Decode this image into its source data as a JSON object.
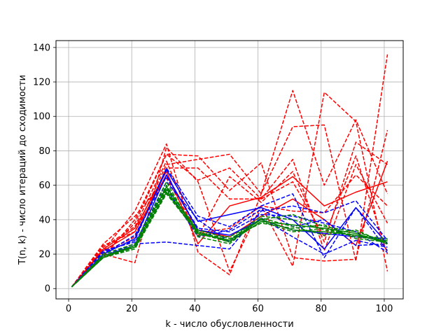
{
  "chart_data": {
    "type": "line",
    "xlabel": "k - число обусловленности",
    "ylabel": "T(n, k) - число итераций до сходимости",
    "xlim": [
      -4,
      106
    ],
    "ylim": [
      -6,
      144
    ],
    "xticks": [
      0,
      20,
      40,
      60,
      80,
      100
    ],
    "yticks": [
      0,
      20,
      40,
      60,
      80,
      100,
      120,
      140
    ],
    "grid": true,
    "x": [
      1,
      11,
      21,
      31,
      41,
      51,
      61,
      71,
      81,
      91,
      101
    ],
    "series": [
      {
        "color": "#ff0000",
        "dash": "dashed",
        "values": [
          1,
          25,
          33,
          72,
          75,
          78,
          55,
          115,
          60,
          98,
          55
        ]
      },
      {
        "color": "#ff0000",
        "dash": "dashed",
        "values": [
          1,
          22,
          45,
          84,
          21,
          8,
          55,
          94,
          95,
          16,
          136
        ]
      },
      {
        "color": "#ff0000",
        "dash": "dashed",
        "values": [
          1,
          20,
          15,
          82,
          62,
          10,
          48,
          13,
          114,
          97,
          10
        ]
      },
      {
        "color": "#ff0000",
        "dash": "dashed",
        "values": [
          1,
          20,
          38,
          78,
          77,
          57,
          73,
          18,
          16,
          17,
          92
        ]
      },
      {
        "color": "#ff0000",
        "dash": "dashed",
        "values": [
          1,
          18,
          40,
          78,
          63,
          70,
          52,
          75,
          22,
          72,
          38
        ]
      },
      {
        "color": "#ff0000",
        "dash": "dashed",
        "values": [
          1,
          24,
          36,
          74,
          30,
          65,
          50,
          68,
          27,
          85,
          72
        ]
      },
      {
        "color": "#ff0000",
        "dash": "dashed",
        "values": [
          1,
          26,
          42,
          64,
          32,
          35,
          48,
          45,
          44,
          66,
          48
        ]
      },
      {
        "color": "#ff0000",
        "dash": "dashed",
        "values": [
          1,
          21,
          30,
          70,
          70,
          52,
          52,
          62,
          30,
          77,
          20
        ]
      },
      {
        "color": "#ff0000",
        "dash": "solid",
        "values": [
          1,
          23,
          35,
          68,
          26,
          48,
          53,
          65,
          48,
          56,
          62
        ]
      },
      {
        "color": "#ff0000",
        "dash": "solid",
        "values": [
          1,
          22,
          33,
          66,
          34,
          30,
          42,
          52,
          40,
          25,
          74
        ]
      },
      {
        "color": "#0000ff",
        "dash": "dashed",
        "values": [
          1,
          21,
          28,
          70,
          42,
          36,
          48,
          55,
          18,
          47,
          22
        ]
      },
      {
        "color": "#0000ff",
        "dash": "dashed",
        "values": [
          1,
          19,
          26,
          27,
          25,
          23,
          45,
          48,
          44,
          51,
          28
        ]
      },
      {
        "color": "#0000ff",
        "dash": "dashed",
        "values": [
          1,
          20,
          31,
          65,
          35,
          33,
          43,
          42,
          38,
          33,
          21
        ]
      },
      {
        "color": "#0000ff",
        "dash": "dashed",
        "values": [
          1,
          18,
          24,
          62,
          40,
          27,
          41,
          30,
          20,
          28,
          24
        ]
      },
      {
        "color": "#0000ff",
        "dash": "dashed",
        "values": [
          1,
          22,
          27,
          58,
          30,
          34,
          46,
          36,
          40,
          25,
          26
        ]
      },
      {
        "color": "#0000ff",
        "dash": "solid",
        "values": [
          1,
          20,
          29,
          69,
          39,
          43,
          47,
          40,
          23,
          47,
          26
        ]
      },
      {
        "color": "#0000ff",
        "dash": "solid",
        "values": [
          1,
          19,
          25,
          66,
          34,
          31,
          40,
          34,
          32,
          30,
          29
        ]
      },
      {
        "color": "#008000",
        "dash": "dashed",
        "values": [
          1,
          18,
          24,
          57,
          33,
          28,
          42,
          40,
          34,
          31,
          29
        ]
      },
      {
        "color": "#008000",
        "dash": "dashed",
        "values": [
          1,
          19,
          25,
          60,
          31,
          30,
          40,
          43,
          36,
          33,
          27
        ]
      },
      {
        "color": "#008000",
        "dash": "dashed",
        "values": [
          1,
          18,
          23,
          55,
          32,
          27,
          39,
          33,
          35,
          30,
          28
        ]
      },
      {
        "color": "#008000",
        "dash": "dashed",
        "values": [
          1,
          20,
          26,
          62,
          30,
          26,
          41,
          36,
          31,
          34,
          26
        ]
      },
      {
        "color": "#008000",
        "dash": "dashed",
        "values": [
          1,
          19,
          24,
          58,
          34,
          29,
          38,
          35,
          37,
          29,
          27
        ]
      },
      {
        "color": "#008000",
        "dash": "solid",
        "values": [
          1,
          19,
          24,
          56,
          32,
          28,
          40,
          34,
          33,
          31,
          27
        ]
      },
      {
        "color": "#008000",
        "dash": "solid",
        "values": [
          1,
          18,
          25,
          59,
          33,
          27,
          39,
          37,
          35,
          32,
          26
        ]
      }
    ]
  }
}
